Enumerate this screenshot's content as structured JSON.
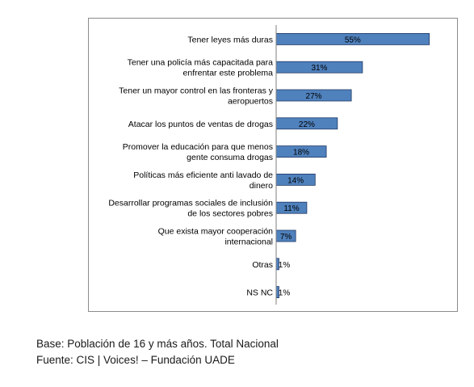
{
  "chart_data": {
    "type": "bar",
    "orientation": "horizontal",
    "categories": [
      "Tener leyes  más duras",
      "Tener una policía  más capacitada para enfrentar este problema",
      "Tener un mayor control en las fronteras y aeropuertos",
      "Atacar los puntos de ventas de drogas",
      "Promover la educación para  que menos gente consuma drogas",
      "Políticas más eficiente  anti lavado de dinero",
      "Desarrollar programas sociales de inclusión de los sectores pobres",
      "Que exista mayor cooperación internacional",
      "Otras",
      "NS NC"
    ],
    "category_lines": [
      [
        "Tener leyes  más duras"
      ],
      [
        "Tener una policía  más capacitada para",
        "enfrentar este problema"
      ],
      [
        "Tener un mayor control en las fronteras y",
        "aeropuertos"
      ],
      [
        "Atacar los puntos de ventas de drogas"
      ],
      [
        "Promover la educación para  que menos",
        "gente consuma drogas"
      ],
      [
        "Políticas más eficiente  anti lavado de",
        "dinero"
      ],
      [
        "Desarrollar programas sociales de inclusión",
        "de los sectores pobres"
      ],
      [
        "Que exista mayor cooperación",
        "internacional"
      ],
      [
        "Otras"
      ],
      [
        "NS NC"
      ]
    ],
    "values": [
      55,
      31,
      27,
      22,
      18,
      14,
      11,
      7,
      1,
      1
    ],
    "value_labels": [
      "55%",
      "31%",
      "27%",
      "22%",
      "18%",
      "14%",
      "11%",
      "7%",
      "1%",
      "1%"
    ],
    "xlim": [
      0,
      58
    ],
    "bar_color": "#4f81bd",
    "bar_border_color": "#1f3864",
    "grid": false,
    "legend": "none"
  },
  "footnotes": {
    "base": "Base: Población de 16 y más años. Total Nacional",
    "source": "Fuente: CIS | Voices! – Fundación UADE"
  }
}
